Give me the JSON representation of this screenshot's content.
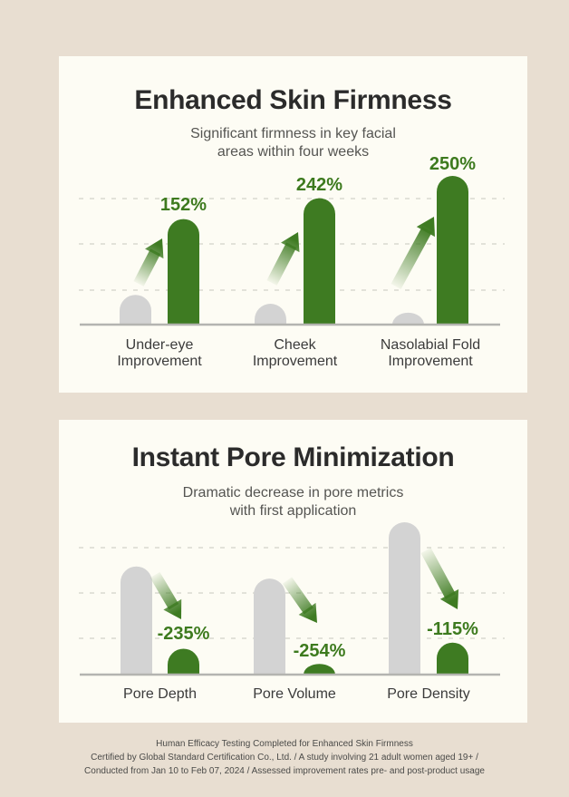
{
  "colors": {
    "page_background": "#e8ded1",
    "card_background": "#fdfcf4",
    "accent_green": "#3e7b22",
    "label_green": "#3d7a1e",
    "bar_gray": "#d3d3d3",
    "gridline": "#d9d9d0",
    "baseline": "#b4b4b0",
    "title_text": "#2b2b2b",
    "subtitle_text": "#555552",
    "footnote_text": "#4a4a48"
  },
  "cards": [
    {
      "title": "Enhanced Skin Firmness",
      "subtitle_lines": [
        "Significant firmness in key facial",
        "areas within four weeks"
      ]
    },
    {
      "title": "Instant Pore Minimization",
      "subtitle_lines": [
        "Dramatic decrease in pore metrics",
        "with first application"
      ]
    }
  ],
  "chart_data": [
    {
      "type": "bar",
      "title": "Enhanced Skin Firmness",
      "subtitle": "Significant firmness in key facial areas within four weeks",
      "trend": "increase",
      "categories": [
        "Under-eye Improvement",
        "Cheek Improvement",
        "Nasolabial Fold Improvement"
      ],
      "category_display_lines": [
        [
          "Under-eye",
          "Improvement"
        ],
        [
          "Cheek",
          "Improvement"
        ],
        [
          "Nasolabial Fold",
          "Improvement"
        ]
      ],
      "improvement_values_pct": [
        152,
        242,
        250
      ],
      "value_labels": [
        "152%",
        "242%",
        "250%"
      ],
      "series": [
        {
          "name": "before",
          "style": "gray rounded bar",
          "values_relative": [
            0.2,
            0.14,
            0.08
          ]
        },
        {
          "name": "after",
          "style": "green rounded bar",
          "values_relative": [
            0.71,
            0.85,
            1.0
          ]
        }
      ],
      "grid": "3 dashed horizontal gridlines, unlabeled",
      "value_axis_labels": "none",
      "legend": "none",
      "annotations": "gradient arrows pointing up-right from gray bar to green bar"
    },
    {
      "type": "bar",
      "title": "Instant Pore Minimization",
      "subtitle": "Dramatic decrease in pore metrics with first application",
      "trend": "decrease",
      "categories": [
        "Pore Depth",
        "Pore Volume",
        "Pore Density"
      ],
      "category_display_lines": [
        [
          "Pore Depth"
        ],
        [
          "Pore Volume"
        ],
        [
          "Pore Density"
        ]
      ],
      "improvement_values_pct": [
        -235,
        -254,
        -115
      ],
      "value_labels": [
        "-235%",
        "-254%",
        "-115%"
      ],
      "series": [
        {
          "name": "before",
          "style": "gray rounded bar",
          "values_relative": [
            0.71,
            0.63,
            1.0
          ]
        },
        {
          "name": "after",
          "style": "green rounded bar",
          "values_relative": [
            0.17,
            0.07,
            0.21
          ]
        }
      ],
      "grid": "3 dashed horizontal gridlines, unlabeled",
      "value_axis_labels": "none",
      "legend": "none",
      "annotations": "gradient arrows pointing down-right from gray bar to green bar"
    }
  ],
  "footer": {
    "lines": [
      "Human Efficacy Testing Completed for Enhanced Skin Firmness",
      "Certified by Global Standard Certification Co., Ltd. / A study involving 21 adult women aged 19+ /",
      "Conducted from Jan 10 to Feb 07, 2024 / Assessed improvement rates pre- and post-product usage"
    ]
  }
}
